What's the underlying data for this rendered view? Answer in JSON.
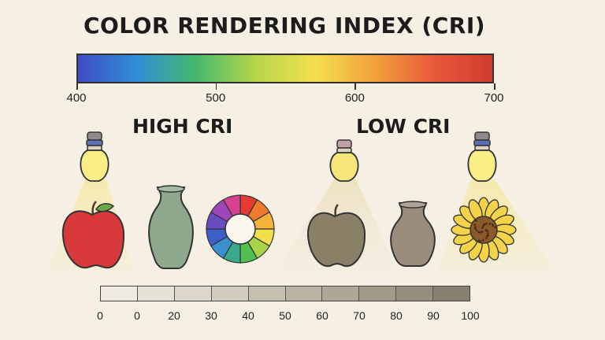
{
  "title": "COLOR RENDERING INDEX (CRI)",
  "spectrum": {
    "labels": [
      "400",
      "500",
      "600",
      "700"
    ],
    "values": [
      400,
      500,
      600,
      700
    ],
    "colors": [
      "#3f4cc8",
      "#2f8fd8",
      "#45b96b",
      "#b6d64a",
      "#f3df4d",
      "#f2a33b",
      "#e85a3a",
      "#d23b2f"
    ]
  },
  "high_cri": {
    "heading": "HIGH CRI",
    "colors": {
      "apple": "#d8393a",
      "vase": "#8ea88e",
      "wheel": [
        "#e53b32",
        "#f07a2c",
        "#f5b33b",
        "#f1e04a",
        "#a8d24a",
        "#4fbf4f",
        "#3aa88a",
        "#3a8fd0",
        "#3d5fc8",
        "#6a4cc0",
        "#a146b8",
        "#d84092"
      ]
    }
  },
  "low_cri": {
    "heading": "LOW CRI",
    "colors": {
      "apple": "#8a8068",
      "vase": "#9a8d7c",
      "sunflower": "#f2d34a"
    }
  },
  "scale": {
    "labels": [
      "0",
      "0",
      "20",
      "30",
      "40",
      "50",
      "60",
      "70",
      "80",
      "90",
      "100"
    ],
    "segment_colors": [
      "#eeeadf",
      "#e6e2d6",
      "#dcd7ca",
      "#d2cdbf",
      "#c6c0b1",
      "#bab3a3",
      "#aea696",
      "#a29a89",
      "#958d7d",
      "#897f70"
    ]
  }
}
